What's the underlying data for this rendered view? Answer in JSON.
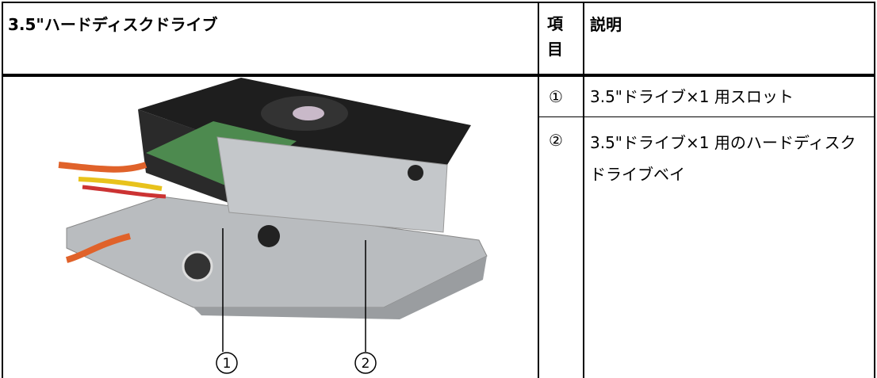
{
  "header": {
    "title": "3.5\"ハードディスクドライブ",
    "item": "項目",
    "description": "説明"
  },
  "rows": [
    {
      "item": "①",
      "description": "3.5\"ドライブ×1 用スロット"
    },
    {
      "item": "②",
      "description": "3.5\"ドライブ×1 用のハードディスクドライブベイ"
    }
  ],
  "callouts": [
    "1",
    "2"
  ]
}
